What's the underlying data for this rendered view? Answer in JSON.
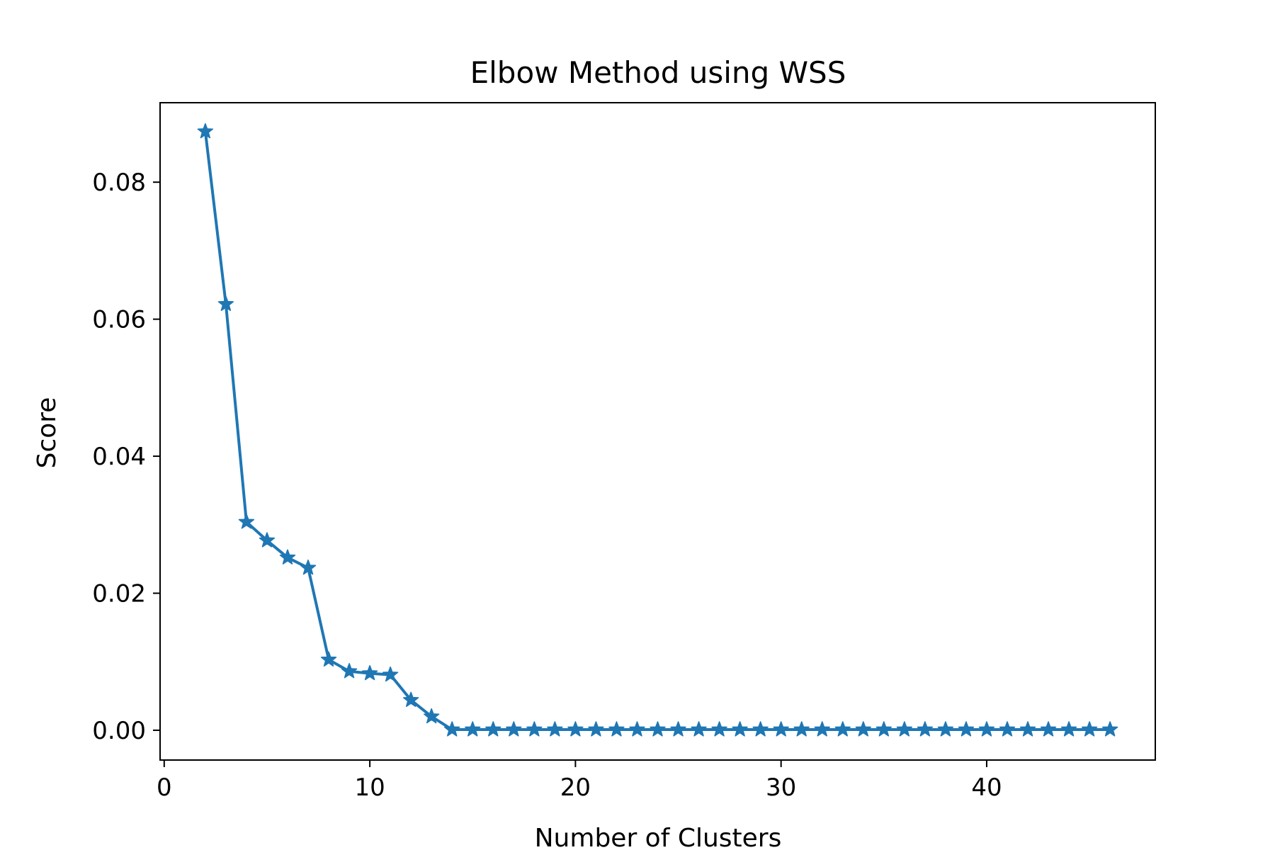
{
  "chart_data": {
    "type": "line",
    "title": "Elbow Method using WSS",
    "xlabel": "Number of Clusters",
    "ylabel": "Score",
    "xlim": [
      -0.2,
      48.2
    ],
    "ylim": [
      -0.00435,
      0.0916
    ],
    "xticks": [
      0,
      10,
      20,
      30,
      40
    ],
    "xtick_labels": [
      "0",
      "10",
      "20",
      "30",
      "40"
    ],
    "yticks": [
      0.0,
      0.02,
      0.04,
      0.06,
      0.08
    ],
    "ytick_labels": [
      "0.00",
      "0.02",
      "0.04",
      "0.06",
      "0.08"
    ],
    "grid": false,
    "marker": "star",
    "color": "#1f77b4",
    "series": [
      {
        "x": [
          2,
          3,
          4,
          5,
          6,
          7,
          8,
          9,
          10,
          11,
          12,
          13,
          14,
          15,
          16,
          17,
          18,
          19,
          20,
          21,
          22,
          23,
          24,
          25,
          26,
          27,
          28,
          29,
          30,
          31,
          32,
          33,
          34,
          35,
          36,
          37,
          38,
          39,
          40,
          41,
          42,
          43,
          44,
          45,
          46
        ],
        "values": [
          0.0874,
          0.0622,
          0.0304,
          0.0277,
          0.0252,
          0.0237,
          0.0103,
          0.0086,
          0.0083,
          0.0081,
          0.0044,
          0.002,
          0.0001,
          0.0001,
          0.0001,
          0.0001,
          0.0001,
          0.0001,
          0.0001,
          0.0001,
          0.0001,
          0.0001,
          0.0001,
          0.0001,
          0.0001,
          0.0001,
          0.0001,
          0.0001,
          0.0001,
          0.0001,
          0.0001,
          0.0001,
          0.0001,
          0.0001,
          0.0001,
          0.0001,
          0.0001,
          0.0001,
          0.0001,
          0.0001,
          0.0001,
          0.0001,
          0.0001,
          0.0001,
          0.0001
        ]
      }
    ]
  }
}
